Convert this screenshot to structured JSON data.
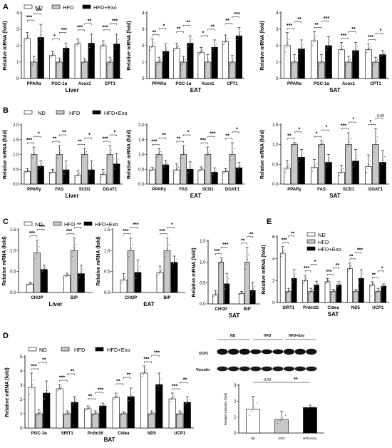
{
  "legend": {
    "nd": "ND",
    "hfd": "HFD",
    "exo": "HFD+Exo"
  },
  "colors": {
    "nd": "#ffffff",
    "hfd": "#c8c8c8",
    "exo": "#000000",
    "axis": "#000000",
    "dot": "#666666"
  },
  "chart_data": [
    {
      "id": "A-liver",
      "panel": "A",
      "type": "bar",
      "xlabel": "Liver",
      "ylabel": "Relative mRNA (fold)",
      "ylim": [
        0,
        4
      ],
      "yticks": [
        "0",
        "1",
        "2",
        "3",
        "4"
      ],
      "categories": [
        "PPARα",
        "PGC-1α",
        "Acox1",
        "CPT1"
      ],
      "series": [
        {
          "name": "ND",
          "values": [
            2.45,
            1.4,
            2.1,
            2.0
          ],
          "errors": [
            0.35,
            0.25,
            0.3,
            0.3
          ]
        },
        {
          "name": "HFD",
          "values": [
            1.0,
            1.0,
            1.0,
            1.0
          ],
          "errors": [
            0.35,
            0.25,
            0.2,
            0.3
          ]
        },
        {
          "name": "HFD+Exo",
          "values": [
            2.5,
            1.85,
            2.15,
            2.1
          ],
          "errors": [
            0.8,
            0.3,
            0.55,
            0.6
          ]
        }
      ],
      "sig": [
        [
          "***",
          "***"
        ],
        [
          "*",
          "***"
        ],
        [
          "***",
          "**"
        ],
        [
          "***",
          "***"
        ]
      ]
    },
    {
      "id": "A-eat",
      "panel": "",
      "type": "bar",
      "xlabel": "EAT",
      "ylabel": "Relative mRNA (fold)",
      "ylim": [
        0,
        4
      ],
      "yticks": [
        "0",
        "1",
        "2",
        "3",
        "4"
      ],
      "categories": [
        "PPARα",
        "PGC-1α",
        "Acox1",
        "CPT1"
      ],
      "series": [
        {
          "name": "ND",
          "values": [
            1.95,
            1.85,
            1.6,
            2.25
          ],
          "errors": [
            0.45,
            0.3,
            0.3,
            0.4
          ]
        },
        {
          "name": "HFD",
          "values": [
            1.0,
            1.0,
            1.0,
            1.0
          ],
          "errors": [
            0.3,
            0.35,
            0.45,
            0.4
          ]
        },
        {
          "name": "HFD+Exo",
          "values": [
            1.65,
            2.15,
            1.9,
            2.6
          ],
          "errors": [
            0.45,
            0.45,
            0.45,
            0.5
          ]
        }
      ],
      "sig": [
        [
          "**",
          "*"
        ],
        [
          "**",
          "**"
        ],
        [
          "*",
          "**"
        ],
        [
          "**",
          "***"
        ]
      ]
    },
    {
      "id": "A-sat",
      "panel": "",
      "type": "bar",
      "xlabel": "SAT",
      "ylabel": "Relative mRNA (fold)",
      "ylim": [
        0,
        4
      ],
      "yticks": [
        "0",
        "1",
        "2",
        "3",
        "4"
      ],
      "categories": [
        "PPARα",
        "PGC-1α",
        "Acox1",
        "CPT1"
      ],
      "series": [
        {
          "name": "ND",
          "values": [
            2.0,
            2.3,
            1.75,
            1.75
          ],
          "errors": [
            0.8,
            0.55,
            0.45,
            0.35
          ]
        },
        {
          "name": "HFD",
          "values": [
            1.0,
            1.0,
            1.0,
            1.0
          ],
          "errors": [
            0.45,
            0.45,
            0.35,
            0.3
          ]
        },
        {
          "name": "HFD+Exo",
          "values": [
            1.8,
            2.0,
            1.7,
            1.45
          ],
          "errors": [
            0.55,
            0.55,
            0.5,
            0.25
          ]
        }
      ],
      "sig": [
        [
          "***",
          "**"
        ],
        [
          "**",
          "***"
        ],
        [
          "***",
          "**"
        ],
        [
          "***",
          "*"
        ]
      ]
    },
    {
      "id": "B-liver",
      "panel": "B",
      "type": "bar",
      "xlabel": "Liver",
      "ylabel": "Relative mRNA (fold)",
      "ylim": [
        0,
        2
      ],
      "yticks": [
        "0.0",
        "0.5",
        "1.0",
        "1.5",
        "2.0"
      ],
      "categories": [
        "PPARγ",
        "FAS",
        "SCD1",
        "DGAT1"
      ],
      "series": [
        {
          "name": "ND",
          "values": [
            0.42,
            0.4,
            0.3,
            0.32
          ],
          "errors": [
            0.1,
            0.1,
            0.15,
            0.18
          ]
        },
        {
          "name": "HFD",
          "values": [
            1.0,
            1.0,
            1.0,
            1.0
          ],
          "errors": [
            0.25,
            0.3,
            0.2,
            0.3
          ]
        },
        {
          "name": "HFD+Exo",
          "values": [
            0.6,
            0.48,
            0.48,
            0.68
          ],
          "errors": [
            0.18,
            0.3,
            0.3,
            0.35
          ]
        }
      ],
      "sig": [
        [
          "***",
          "*"
        ],
        [
          "**",
          "**"
        ],
        [
          "**",
          "*"
        ],
        [
          "***",
          "*"
        ]
      ]
    },
    {
      "id": "B-eat",
      "panel": "",
      "type": "bar",
      "xlabel": "EAT",
      "ylabel": "Relative mRNA (fold)",
      "ylim": [
        0,
        2
      ],
      "yticks": [
        "0.0",
        "0.5",
        "1.0",
        "1.5",
        "2.0"
      ],
      "categories": [
        "PPARγ",
        "FAS",
        "SCD1",
        "DGAT1"
      ],
      "series": [
        {
          "name": "ND",
          "values": [
            0.48,
            0.48,
            0.48,
            0.42
          ],
          "errors": [
            0.08,
            0.2,
            0.1,
            0.1
          ]
        },
        {
          "name": "HFD",
          "values": [
            1.0,
            1.0,
            1.0,
            1.0
          ],
          "errors": [
            0.2,
            0.3,
            0.25,
            0.4
          ]
        },
        {
          "name": "HFD+Exo",
          "values": [
            0.65,
            0.5,
            0.4,
            0.55
          ],
          "errors": [
            0.15,
            0.25,
            0.15,
            0.18
          ]
        }
      ],
      "sig": [
        [
          "***",
          "**"
        ],
        [
          "**",
          "*"
        ],
        [
          "***",
          "***"
        ],
        [
          "**",
          "*"
        ]
      ]
    },
    {
      "id": "B-sat",
      "panel": "",
      "type": "bar",
      "xlabel": "SAT",
      "ylabel": "Relative mRNA (fold)",
      "ylim": [
        0,
        1.5
      ],
      "yticks": [
        "0.0",
        "0.5",
        "1.0",
        "1.5"
      ],
      "categories": [
        "PPARγ",
        "FAS",
        "SCD1",
        "DGAT1"
      ],
      "series": [
        {
          "name": "ND",
          "values": [
            0.4,
            0.42,
            0.3,
            0.44
          ],
          "errors": [
            0.2,
            0.2,
            0.18,
            0.3
          ]
        },
        {
          "name": "HFD",
          "values": [
            1.0,
            1.0,
            1.0,
            1.0
          ],
          "errors": [
            0.05,
            0.1,
            0.3,
            0.4
          ]
        },
        {
          "name": "HFD+Exo",
          "values": [
            0.68,
            0.55,
            0.58,
            0.55
          ],
          "errors": [
            0.2,
            0.2,
            0.3,
            0.3
          ]
        }
      ],
      "sig": [
        [
          "**",
          "*"
        ],
        [
          "*",
          "*"
        ],
        [
          "***",
          "*"
        ],
        [
          "*",
          "0.09"
        ]
      ]
    },
    {
      "id": "C-liver",
      "panel": "C",
      "type": "bar",
      "xlabel": "Liver",
      "ylabel": "Relative mRNA (fold)",
      "ylim": [
        0,
        1.5
      ],
      "yticks": [
        "0.0",
        "0.5",
        "1.0",
        "1.5"
      ],
      "categories": [
        "CHOP",
        "BiP"
      ],
      "series": [
        {
          "name": "ND",
          "values": [
            0.2,
            0.4
          ],
          "errors": [
            0.05,
            0.06
          ]
        },
        {
          "name": "HFD",
          "values": [
            0.95,
            1.0
          ],
          "errors": [
            0.3,
            0.3
          ]
        },
        {
          "name": "HFD+Exo",
          "values": [
            0.55,
            0.45
          ],
          "errors": [
            0.1,
            0.2
          ]
        }
      ],
      "sig": [
        [
          "***",
          "***"
        ],
        [
          "***",
          "**"
        ]
      ]
    },
    {
      "id": "C-eat",
      "panel": "",
      "type": "bar",
      "xlabel": "EAT",
      "ylabel": "Relative mRNA (fold)",
      "ylim": [
        0,
        1.5
      ],
      "yticks": [
        "0.0",
        "0.5",
        "1.0",
        "1.5"
      ],
      "categories": [
        "CHOP",
        "BiP"
      ],
      "series": [
        {
          "name": "ND",
          "values": [
            0.3,
            0.48
          ],
          "errors": [
            0.15,
            0.15
          ]
        },
        {
          "name": "HFD",
          "values": [
            1.0,
            1.0
          ],
          "errors": [
            0.3,
            0.3
          ]
        },
        {
          "name": "HFD+Exo",
          "values": [
            0.48,
            0.72
          ],
          "errors": [
            0.3,
            0.15
          ]
        }
      ],
      "sig": [
        [
          "***",
          "***"
        ],
        [
          "***",
          "*"
        ]
      ]
    },
    {
      "id": "C-sat",
      "panel": "",
      "type": "bar",
      "xlabel": "SAT",
      "ylabel": "Relative mRNA (fold)",
      "ylim": [
        0,
        1.5
      ],
      "yticks": [
        "0.0",
        "0.5",
        "1.0",
        "1.5"
      ],
      "categories": [
        "CHOP",
        "BiP"
      ],
      "series": [
        {
          "name": "ND",
          "values": [
            0.22,
            0.25
          ],
          "errors": [
            0.1,
            0.05
          ]
        },
        {
          "name": "HFD",
          "values": [
            1.0,
            1.0
          ],
          "errors": [
            0.1,
            0.35
          ]
        },
        {
          "name": "HFD+Exo",
          "values": [
            0.48,
            0.32
          ],
          "errors": [
            0.25,
            0.2
          ]
        }
      ],
      "sig": [
        [
          "***",
          "***"
        ],
        [
          "**",
          "**"
        ]
      ]
    },
    {
      "id": "E-sat",
      "panel": "E",
      "type": "bar",
      "xlabel": "SAT",
      "ylabel": "Relative mRNA (fold)",
      "ylim": [
        0,
        6
      ],
      "yticks": [
        "0",
        "2",
        "4",
        "6"
      ],
      "categories": [
        "SIRT1",
        "Prdm16",
        "Cidea",
        "ND5",
        "UCP1"
      ],
      "series": [
        {
          "name": "ND",
          "values": [
            4.5,
            2.0,
            1.9,
            3.1,
            1.6
          ],
          "errors": [
            0.6,
            0.5,
            0.3,
            0.5,
            0.3
          ]
        },
        {
          "name": "HFD",
          "values": [
            1.0,
            1.0,
            1.0,
            1.0,
            1.0
          ],
          "errors": [
            0.3,
            0.3,
            0.2,
            0.2,
            0.3
          ]
        },
        {
          "name": "HFD+Exo",
          "values": [
            2.2,
            1.6,
            1.6,
            2.2,
            1.5
          ],
          "errors": [
            0.8,
            0.35,
            0.3,
            0.8,
            0.2
          ]
        }
      ],
      "sig": [
        [
          "***",
          "**"
        ],
        [
          "***",
          "*"
        ],
        [
          "***",
          "**"
        ],
        [
          "**",
          "***"
        ],
        [
          "**",
          "*"
        ]
      ]
    },
    {
      "id": "D-bat",
      "panel": "D",
      "type": "bar",
      "xlabel": "BAT",
      "ylabel": "Relative mRNA (fold)",
      "ylim": [
        0,
        5
      ],
      "yticks": [
        "0",
        "1",
        "2",
        "3",
        "4",
        "5"
      ],
      "categories": [
        "PGC-1α",
        "SIRT1",
        "Prdm16",
        "Cidea",
        "ND5",
        "UCP1"
      ],
      "series": [
        {
          "name": "ND",
          "values": [
            2.85,
            2.75,
            1.35,
            2.15,
            3.85,
            2.05
          ],
          "errors": [
            1.0,
            0.3,
            0.2,
            0.3,
            0.5,
            0.4
          ]
        },
        {
          "name": "HFD",
          "values": [
            1.0,
            1.0,
            1.0,
            1.0,
            1.0,
            1.0
          ],
          "errors": [
            0.3,
            0.2,
            0.2,
            0.15,
            0.2,
            0.2
          ]
        },
        {
          "name": "HFD+Exo",
          "values": [
            2.45,
            1.8,
            1.55,
            2.2,
            3.05,
            1.8
          ],
          "errors": [
            0.85,
            0.4,
            0.2,
            0.6,
            0.8,
            0.4
          ]
        }
      ],
      "sig": [
        [
          "***",
          "**"
        ],
        [
          "***",
          "**"
        ],
        [
          "**",
          "***"
        ],
        [
          "**",
          "**"
        ],
        [
          "***",
          "***"
        ],
        [
          "***",
          "**"
        ]
      ]
    },
    {
      "id": "D-quant",
      "panel": "",
      "type": "bar",
      "xlabel": "",
      "ylabel": "Relative intensity (fold)",
      "ylim": [
        0,
        3
      ],
      "yticks": [
        "0",
        "1",
        "2",
        "3"
      ],
      "categories": [
        "ND",
        "HFD",
        "HFD+Exo"
      ],
      "series": [
        {
          "name": "",
          "values": [
            1.5,
            0.85,
            1.6
          ],
          "errors": [
            0.8,
            0.5,
            0.15
          ]
        }
      ],
      "sig_pairs": [
        [
          "0.09",
          "**"
        ]
      ]
    }
  ],
  "blot": {
    "groups": [
      "ND",
      "HFD",
      "HFD+Exo"
    ],
    "proteins": [
      "UCP1",
      "Vinculin"
    ]
  }
}
